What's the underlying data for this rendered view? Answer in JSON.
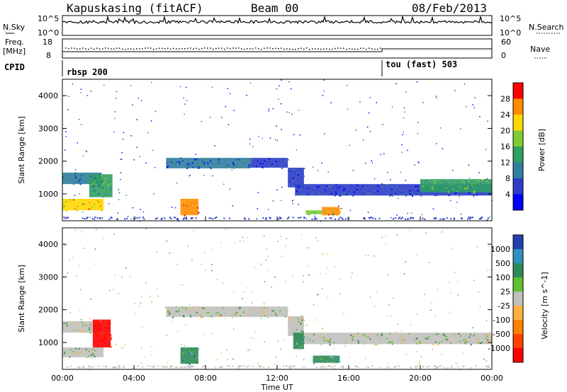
{
  "header": {
    "station": "Kapuskasing (fitACF)",
    "beam": "Beam 00",
    "date": "08/Feb/2013"
  },
  "aux_panels": {
    "nsky_label": "N.Sky",
    "nsky_ticks": [
      "10^5",
      "10^0"
    ],
    "nsearch_label": "N.Search",
    "nsearch_ticks": [
      "10^5",
      "10^0"
    ],
    "freq_label": "Freq.",
    "freq_unit": "[MHz]",
    "freq_ticks": [
      "18",
      "8"
    ],
    "nave_label": "Nave",
    "nave_ticks": [
      "60",
      "0"
    ],
    "cpid_label": "CPID",
    "programs": [
      "rbsp 200",
      "tou (fast) 503"
    ]
  },
  "chart_data": [
    {
      "type": "heatmap",
      "panel": "power",
      "xlabel": "Time UT",
      "ylabel": "Slant Range [km]",
      "x_ticks": [
        "00:00",
        "04:00",
        "08:00",
        "12:00",
        "16:00",
        "20:00",
        "00:00"
      ],
      "xlim_hours": [
        0,
        24
      ],
      "ylim": [
        180,
        4500
      ],
      "y_ticks": [
        1000,
        2000,
        3000,
        4000
      ],
      "colorbar_label": "Power [dB]",
      "colorbar_ticks": [
        4,
        8,
        12,
        16,
        20,
        24,
        28
      ],
      "colorbar_range": [
        0,
        30
      ],
      "colors": [
        "#0000ff",
        "#2c3cc8",
        "#2f7f9f",
        "#2fa060",
        "#7fcc33",
        "#ffd700",
        "#ff8c00",
        "#ff0000"
      ],
      "echo_bands": [
        {
          "t0": 0.0,
          "t1": 2.2,
          "r0": 1300,
          "r1": 1650,
          "level": 0.3
        },
        {
          "t0": 0.0,
          "t1": 2.3,
          "r0": 500,
          "r1": 850,
          "level": 0.7
        },
        {
          "t0": 1.5,
          "t1": 2.8,
          "r0": 900,
          "r1": 1600,
          "level": 0.4
        },
        {
          "t0": 5.8,
          "t1": 10.5,
          "r0": 1780,
          "r1": 2100,
          "level": 0.25
        },
        {
          "t0": 10.5,
          "t1": 12.6,
          "r0": 1800,
          "r1": 2100,
          "level": 0.2
        },
        {
          "t0": 12.6,
          "t1": 13.5,
          "r0": 1200,
          "r1": 1800,
          "level": 0.2
        },
        {
          "t0": 13.0,
          "t1": 24.0,
          "r0": 950,
          "r1": 1300,
          "level": 0.2
        },
        {
          "t0": 20.0,
          "t1": 24.0,
          "r0": 1050,
          "r1": 1450,
          "level": 0.45
        },
        {
          "t0": 6.6,
          "t1": 7.6,
          "r0": 350,
          "r1": 850,
          "level": 0.8
        },
        {
          "t0": 13.6,
          "t1": 14.5,
          "r0": 380,
          "r1": 500,
          "level": 0.5
        },
        {
          "t0": 14.5,
          "t1": 15.5,
          "r0": 350,
          "r1": 600,
          "level": 0.75
        }
      ]
    },
    {
      "type": "heatmap",
      "panel": "velocity",
      "xlabel": "Time UT",
      "ylabel": "Slant Range [km]",
      "x_ticks": [
        "00:00",
        "04:00",
        "08:00",
        "12:00",
        "16:00",
        "20:00",
        "00:00"
      ],
      "xlim_hours": [
        0,
        24
      ],
      "ylim": [
        180,
        4500
      ],
      "y_ticks": [
        1000,
        2000,
        3000,
        4000
      ],
      "colorbar_label": "Velocity [m s^-1]",
      "colorbar_ticks": [
        "1000",
        "500",
        "100",
        "25",
        "-25",
        "-100",
        "-500",
        "-1000"
      ],
      "colors": [
        "#2040b0",
        "#3090c0",
        "#2e8b57",
        "#60c030",
        "#c0c0bc",
        "#ffb040",
        "#ff8000",
        "#ff4000",
        "#ff0000"
      ],
      "echo_bands": [
        {
          "t0": 0.0,
          "t1": 2.2,
          "r0": 1300,
          "r1": 1650,
          "level": 0.45
        },
        {
          "t0": 0.0,
          "t1": 2.3,
          "r0": 550,
          "r1": 850,
          "level": 0.45
        },
        {
          "t0": 1.7,
          "t1": 2.7,
          "r0": 850,
          "r1": 1700,
          "level": 0.9
        },
        {
          "t0": 5.8,
          "t1": 12.6,
          "r0": 1780,
          "r1": 2100,
          "level": 0.45
        },
        {
          "t0": 12.6,
          "t1": 13.5,
          "r0": 1200,
          "r1": 1800,
          "level": 0.45
        },
        {
          "t0": 13.0,
          "t1": 24.0,
          "r0": 950,
          "r1": 1300,
          "level": 0.45
        },
        {
          "t0": 6.6,
          "t1": 7.6,
          "r0": 350,
          "r1": 850,
          "level": 0.3
        },
        {
          "t0": 12.9,
          "t1": 13.5,
          "r0": 800,
          "r1": 1300,
          "level": 0.3
        },
        {
          "t0": 14.0,
          "t1": 15.5,
          "r0": 380,
          "r1": 600,
          "level": 0.3
        }
      ]
    }
  ]
}
